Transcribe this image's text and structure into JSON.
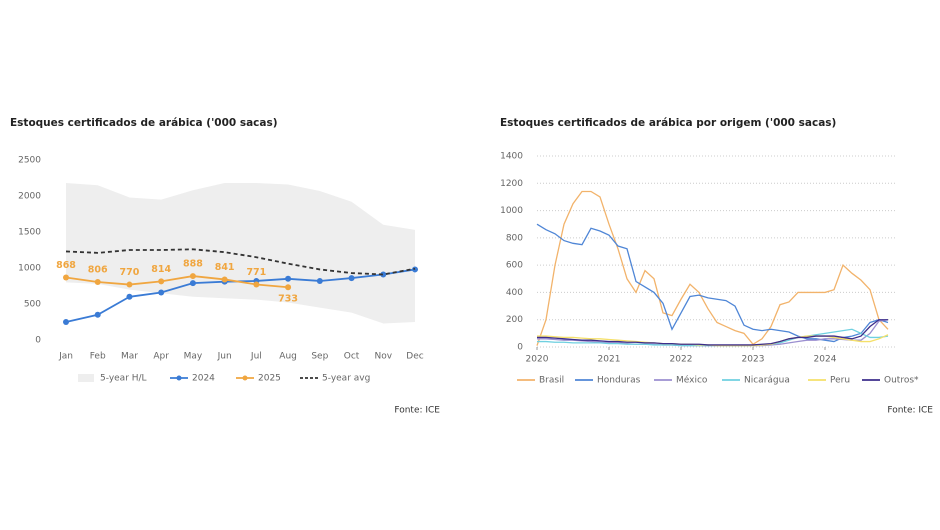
{
  "chart_data": [
    {
      "type": "line",
      "title": "Estoques certificados de arábica ('000 sacas)",
      "source": "Fonte: ICE",
      "categories": [
        "Jan",
        "Feb",
        "Mar",
        "Apr",
        "May",
        "Jun",
        "Jul",
        "Aug",
        "Sep",
        "Oct",
        "Nov",
        "Dec"
      ],
      "ylim": [
        0,
        2500
      ],
      "yticks": [
        0,
        500,
        1000,
        1500,
        2000,
        2500
      ],
      "grid": false,
      "series": [
        {
          "name": "5-year H/L",
          "color": "#eeeeee",
          "high": [
            2180,
            2150,
            1980,
            1950,
            2080,
            2180,
            2180,
            2160,
            2070,
            1920,
            1600,
            1530
          ],
          "low": [
            800,
            780,
            700,
            650,
            600,
            580,
            560,
            520,
            450,
            380,
            230,
            250
          ]
        },
        {
          "name": "2024",
          "color": "#3a7bd5",
          "markers": true,
          "values": [
            250,
            350,
            600,
            660,
            790,
            810,
            820,
            850,
            820,
            860,
            910,
            980
          ]
        },
        {
          "name": "2025",
          "color": "#f0a640",
          "markers": true,
          "data_labels": true,
          "values": [
            868,
            806,
            770,
            814,
            888,
            841,
            771,
            733,
            null,
            null,
            null,
            null
          ]
        },
        {
          "name": "5-year avg",
          "color": "#333333",
          "style": "dashed",
          "values": [
            1230,
            1210,
            1250,
            1250,
            1260,
            1220,
            1150,
            1060,
            980,
            930,
            910,
            990
          ]
        }
      ]
    },
    {
      "type": "line",
      "title": "Estoques certificados de arábica por origem ('000 sacas)",
      "source": "Fonte: ICE",
      "x": [
        2020,
        2020.125,
        2020.25,
        2020.375,
        2020.5,
        2020.625,
        2020.75,
        2020.875,
        2021,
        2021.125,
        2021.25,
        2021.375,
        2021.5,
        2021.625,
        2021.75,
        2021.875,
        2022,
        2022.125,
        2022.25,
        2022.375,
        2022.5,
        2022.625,
        2022.75,
        2022.875,
        2023,
        2023.125,
        2023.25,
        2023.375,
        2023.5,
        2023.625,
        2023.75,
        2023.875,
        2024,
        2024.125,
        2024.25,
        2024.375,
        2024.5,
        2024.625,
        2024.75,
        2024.875
      ],
      "xlim": [
        2020,
        2025
      ],
      "xticks": [
        2020,
        2021,
        2022,
        2023,
        2024
      ],
      "ylim": [
        0,
        1400
      ],
      "yticks": [
        0,
        200,
        400,
        600,
        800,
        1000,
        1200,
        1400
      ],
      "grid": true,
      "series": [
        {
          "name": "Brasil",
          "color": "#f2b36b",
          "values": [
            10,
            200,
            600,
            900,
            1050,
            1140,
            1140,
            1100,
            900,
            720,
            500,
            400,
            560,
            500,
            250,
            230,
            350,
            460,
            400,
            280,
            180,
            150,
            120,
            100,
            20,
            60,
            150,
            310,
            330,
            400,
            400,
            400,
            400,
            420,
            600,
            540,
            490,
            420,
            200,
            130
          ]
        },
        {
          "name": "Honduras",
          "color": "#4f86d6",
          "values": [
            900,
            860,
            830,
            780,
            760,
            750,
            870,
            850,
            820,
            740,
            720,
            480,
            440,
            400,
            320,
            130,
            250,
            370,
            380,
            360,
            350,
            340,
            300,
            160,
            130,
            120,
            130,
            120,
            110,
            80,
            60,
            60,
            50,
            40,
            70,
            80,
            100,
            180,
            200,
            180
          ]
        },
        {
          "name": "México",
          "color": "#9b8fd0",
          "values": [
            60,
            60,
            55,
            50,
            50,
            45,
            40,
            35,
            30,
            30,
            25,
            20,
            20,
            20,
            15,
            15,
            10,
            10,
            10,
            10,
            10,
            10,
            10,
            10,
            10,
            10,
            15,
            20,
            30,
            40,
            50,
            50,
            60,
            60,
            55,
            50,
            50,
            100,
            190,
            200
          ]
        },
        {
          "name": "Nicarágua",
          "color": "#6fd0e0",
          "values": [
            40,
            40,
            35,
            35,
            30,
            30,
            30,
            30,
            25,
            25,
            20,
            20,
            20,
            15,
            15,
            15,
            10,
            10,
            10,
            10,
            10,
            10,
            10,
            10,
            10,
            15,
            20,
            30,
            50,
            70,
            80,
            90,
            100,
            110,
            120,
            130,
            100,
            70,
            70,
            80
          ]
        },
        {
          "name": "Peru",
          "color": "#f5e06a",
          "values": [
            80,
            80,
            75,
            70,
            70,
            65,
            60,
            60,
            55,
            50,
            45,
            40,
            35,
            30,
            25,
            25,
            20,
            20,
            15,
            15,
            10,
            10,
            10,
            10,
            10,
            15,
            20,
            40,
            60,
            70,
            80,
            80,
            80,
            70,
            60,
            50,
            40,
            40,
            60,
            90
          ]
        },
        {
          "name": "Outros*",
          "color": "#3d2e8c",
          "values": [
            70,
            70,
            65,
            60,
            55,
            50,
            50,
            45,
            40,
            40,
            35,
            35,
            30,
            30,
            25,
            25,
            20,
            20,
            20,
            15,
            15,
            15,
            15,
            15,
            15,
            20,
            25,
            40,
            60,
            70,
            70,
            80,
            80,
            80,
            70,
            60,
            80,
            150,
            200,
            200
          ]
        }
      ]
    }
  ]
}
